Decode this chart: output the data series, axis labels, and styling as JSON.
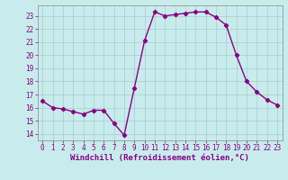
{
  "hours": [
    0,
    1,
    2,
    3,
    4,
    5,
    6,
    7,
    8,
    9,
    10,
    11,
    12,
    13,
    14,
    15,
    16,
    17,
    18,
    19,
    20,
    21,
    22,
    23
  ],
  "values": [
    16.5,
    16.0,
    15.9,
    15.7,
    15.5,
    15.8,
    15.8,
    14.8,
    13.9,
    17.5,
    21.1,
    23.3,
    23.0,
    23.1,
    23.2,
    23.3,
    23.3,
    22.9,
    22.3,
    20.0,
    18.0,
    17.2,
    16.6,
    16.2
  ],
  "line_color": "#880088",
  "marker": "D",
  "marker_size": 2.2,
  "bg_color": "#c8ecec",
  "grid_color": "#aacccc",
  "xlabel": "Windchill (Refroidissement éolien,°C)",
  "xlim": [
    -0.5,
    23.5
  ],
  "ylim": [
    13.5,
    23.8
  ],
  "yticks": [
    14,
    15,
    16,
    17,
    18,
    19,
    20,
    21,
    22,
    23
  ],
  "xticks": [
    0,
    1,
    2,
    3,
    4,
    5,
    6,
    7,
    8,
    9,
    10,
    11,
    12,
    13,
    14,
    15,
    16,
    17,
    18,
    19,
    20,
    21,
    22,
    23
  ],
  "tick_fontsize": 5.5,
  "xlabel_fontsize": 6.5,
  "linewidth": 1.0
}
